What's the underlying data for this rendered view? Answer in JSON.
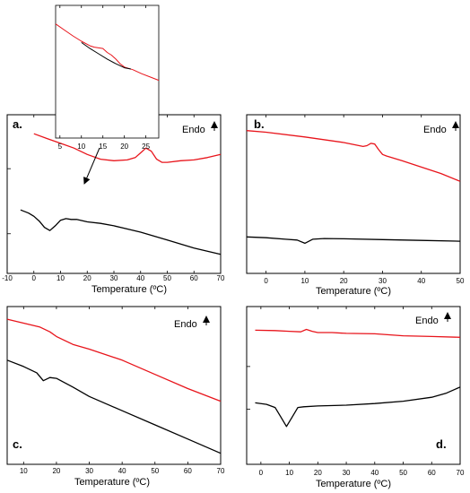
{
  "figure": {
    "annotation": "Endo",
    "xlabel": "Temperature (ºC)"
  },
  "chart_data": [
    {
      "panel": "a.",
      "type": "line",
      "xlabel": "Temperature (ºC)",
      "xlim": [
        -10,
        70
      ],
      "xticks": [
        -10,
        0,
        10,
        20,
        30,
        40,
        50,
        60,
        70
      ],
      "legend": "Endo",
      "series": [
        {
          "color": "#e8141b",
          "x": [
            0,
            5,
            10,
            15,
            20,
            25,
            30,
            35,
            38,
            40,
            42,
            44,
            46,
            48,
            50,
            55,
            60,
            65,
            70
          ],
          "y": [
            88,
            85,
            82,
            79,
            75,
            72,
            71,
            71.5,
            73,
            76,
            79,
            77,
            72,
            70,
            70,
            71,
            71.5,
            73,
            75
          ]
        },
        {
          "color": "#000000",
          "x": [
            -5,
            -2,
            0,
            2,
            4,
            6,
            8,
            10,
            12,
            14,
            16,
            20,
            25,
            30,
            40,
            50,
            60,
            70
          ],
          "y": [
            40,
            38,
            36,
            33,
            29,
            27,
            30,
            33.5,
            34.5,
            34,
            34,
            32.5,
            31.5,
            30,
            26,
            21,
            16,
            12
          ]
        }
      ]
    },
    {
      "panel": "b.",
      "type": "line",
      "xlabel": "Temperature (ºC)",
      "xlim": [
        -5,
        50
      ],
      "xticks": [
        0,
        10,
        20,
        30,
        40,
        50
      ],
      "legend": "Endo",
      "series": [
        {
          "color": "#e8141b",
          "x": [
            -5,
            0,
            10,
            20,
            25,
            26,
            27,
            28,
            29,
            30,
            31,
            35,
            40,
            45,
            50
          ],
          "y": [
            90,
            89,
            86,
            82.5,
            80,
            80.5,
            82,
            81.5,
            78,
            75,
            74,
            71,
            67,
            63,
            58
          ]
        },
        {
          "color": "#000000",
          "x": [
            -5,
            0,
            5,
            8,
            10,
            12,
            15,
            20,
            30,
            40,
            50
          ],
          "y": [
            23,
            22.5,
            21.5,
            21,
            19,
            21.5,
            22,
            21.8,
            21.3,
            20.8,
            20.3
          ]
        }
      ]
    },
    {
      "panel": "c.",
      "type": "line",
      "xlabel": "Temperature (ºC)",
      "xlim": [
        5,
        70
      ],
      "xticks": [
        10,
        20,
        30,
        40,
        50,
        60,
        70
      ],
      "legend": "Endo",
      "series": [
        {
          "color": "#e8141b",
          "x": [
            5,
            10,
            15,
            18,
            20,
            25,
            30,
            40,
            50,
            60,
            70
          ],
          "y": [
            92,
            89.5,
            87,
            84,
            81,
            76,
            73,
            66,
            57,
            48,
            40
          ]
        },
        {
          "color": "#000000",
          "x": [
            5,
            10,
            14,
            16,
            18,
            20,
            25,
            30,
            40,
            50,
            60,
            70
          ],
          "y": [
            66,
            62,
            58,
            53,
            55,
            54.5,
            49,
            43,
            34,
            25,
            16,
            7
          ]
        }
      ]
    },
    {
      "panel": "d.",
      "type": "line",
      "xlabel": "Temperature (ºC)",
      "xlim": [
        -5,
        70
      ],
      "xticks": [
        0,
        10,
        20,
        30,
        40,
        50,
        60,
        70
      ],
      "legend": "Endo",
      "series": [
        {
          "color": "#e8141b",
          "x": [
            -2,
            5,
            10,
            14,
            16,
            18,
            20,
            25,
            30,
            40,
            50,
            60,
            70
          ],
          "y": [
            85,
            84.8,
            84.3,
            84,
            85.5,
            84.3,
            83.5,
            83.5,
            83,
            82.7,
            81.5,
            81,
            80.5
          ]
        },
        {
          "color": "#000000",
          "x": [
            -2,
            2,
            5,
            7,
            9,
            11,
            13,
            15,
            20,
            30,
            40,
            50,
            60,
            65,
            70
          ],
          "y": [
            39,
            38,
            36,
            30,
            24,
            30,
            36,
            36.5,
            37,
            37.5,
            38.5,
            40,
            42.5,
            45,
            49
          ]
        }
      ]
    },
    {
      "panel": "inset",
      "type": "line",
      "xlim": [
        4,
        28
      ],
      "xticks": [
        5,
        10,
        15,
        20,
        25
      ],
      "series": [
        {
          "color": "#e8141b",
          "x": [
            4,
            6,
            8,
            10,
            12,
            13,
            14,
            15,
            16,
            17,
            18,
            19,
            20,
            21,
            22,
            24,
            26,
            28
          ],
          "y": [
            86,
            81.5,
            77,
            73,
            69.5,
            68.5,
            68,
            67.5,
            64.5,
            62.5,
            59.5,
            56,
            53.5,
            52.5,
            51.5,
            48.5,
            46,
            43.5
          ]
        },
        {
          "color": "#000000",
          "x": [
            10,
            12,
            14,
            16,
            18,
            20,
            21.5
          ],
          "y": [
            72,
            67.5,
            63.5,
            59.5,
            56,
            53,
            52
          ]
        }
      ]
    }
  ]
}
